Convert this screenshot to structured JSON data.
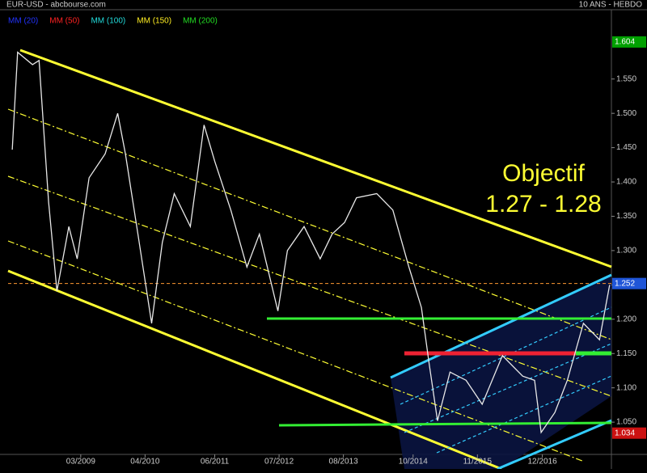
{
  "chart_data": {
    "type": "line",
    "title": "EUR-USD - abcbourse.com",
    "subtitle": "10 ANS - HEBDO",
    "ma_legend": [
      {
        "label": "MM (20)",
        "color": "#2233ff"
      },
      {
        "label": "MM (50)",
        "color": "#ff2222"
      },
      {
        "label": "MM (100)",
        "color": "#22dddd"
      },
      {
        "label": "MM (150)",
        "color": "#ffee22"
      },
      {
        "label": "MM (200)",
        "color": "#22dd22"
      }
    ],
    "annotations": [
      "Objectif",
      "1.27 - 1.28"
    ],
    "x": [
      2008.02,
      2008.11,
      2008.36,
      2008.47,
      2008.63,
      2008.77,
      2008.97,
      2009.11,
      2009.31,
      2009.58,
      2009.79,
      2009.92,
      2010.13,
      2010.36,
      2010.54,
      2010.74,
      2011.01,
      2011.24,
      2011.42,
      2011.69,
      2011.96,
      2012.17,
      2012.48,
      2012.64,
      2012.92,
      2013.19,
      2013.39,
      2013.6,
      2013.8,
      2014.14,
      2014.41,
      2014.68,
      2014.89,
      2015.02,
      2015.16,
      2015.37,
      2015.64,
      2015.91,
      2016.25,
      2016.59,
      2016.79,
      2016.9,
      2017.13,
      2017.34,
      2017.61,
      2017.88,
      2018.05
    ],
    "series": [
      {
        "name": "EUR-USD",
        "color": "#e8e8e8",
        "values": [
          1.447,
          1.589,
          1.571,
          1.577,
          1.371,
          1.241,
          1.335,
          1.288,
          1.406,
          1.441,
          1.5,
          1.441,
          1.324,
          1.194,
          1.312,
          1.383,
          1.335,
          1.483,
          1.43,
          1.359,
          1.276,
          1.324,
          1.212,
          1.3,
          1.335,
          1.288,
          1.324,
          1.341,
          1.377,
          1.383,
          1.359,
          1.276,
          1.217,
          1.135,
          1.052,
          1.123,
          1.111,
          1.076,
          1.147,
          1.117,
          1.111,
          1.035,
          1.064,
          1.111,
          1.194,
          1.17,
          1.25
        ]
      }
    ],
    "xlim": [
      2007.95,
      2018.08
    ],
    "xticks": [
      {
        "value": 2009.17,
        "label": "03/2009"
      },
      {
        "value": 2010.25,
        "label": "04/2010"
      },
      {
        "value": 2011.42,
        "label": "06/2011"
      },
      {
        "value": 2012.5,
        "label": "07/2012"
      },
      {
        "value": 2013.58,
        "label": "08/2013"
      },
      {
        "value": 2014.75,
        "label": "10/2014"
      },
      {
        "value": 2015.83,
        "label": "11/2015"
      },
      {
        "value": 2016.92,
        "label": "12/2016"
      }
    ],
    "ylim": [
      1.003,
      1.651
    ],
    "yticks": [
      {
        "value": 1.05,
        "label": "1.050"
      },
      {
        "value": 1.1,
        "label": "1.100"
      },
      {
        "value": 1.15,
        "label": "1.150"
      },
      {
        "value": 1.2,
        "label": "1.200"
      },
      {
        "value": 1.25,
        "label": "1.250"
      },
      {
        "value": 1.3,
        "label": "1.300"
      },
      {
        "value": 1.35,
        "label": "1.350"
      },
      {
        "value": 1.4,
        "label": "1.400"
      },
      {
        "value": 1.45,
        "label": "1.450"
      },
      {
        "value": 1.5,
        "label": "1.500"
      },
      {
        "value": 1.55,
        "label": "1.550"
      }
    ],
    "price_markers": [
      {
        "value": 1.604,
        "color": "#00a000"
      },
      {
        "value": 1.252,
        "color": "#1f55d8"
      },
      {
        "value": 1.034,
        "color": "#cc1111"
      }
    ]
  }
}
